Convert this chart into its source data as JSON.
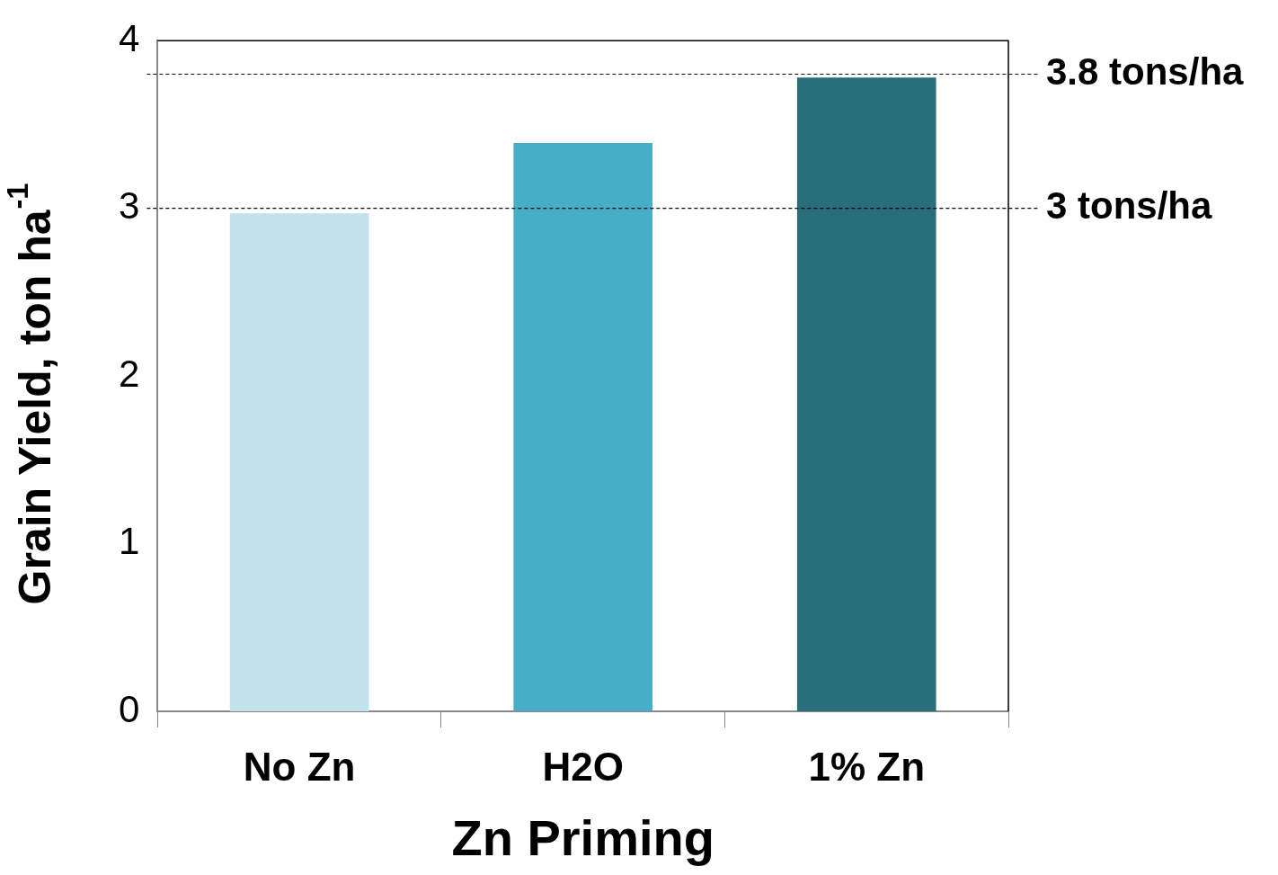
{
  "chart_data": {
    "type": "bar",
    "categories": [
      "No Zn",
      "H2O",
      "1% Zn"
    ],
    "values": [
      2.97,
      3.39,
      3.78
    ],
    "colors": [
      "#c2e3ec",
      "#48adc7",
      "#296d7a"
    ],
    "xlabel": "Zn Priming",
    "ylabel": "Grain Yield, ton ha$^{-1}$",
    "ylim": [
      0,
      4
    ],
    "yticks": [
      0,
      1,
      2,
      3,
      4
    ],
    "grid": false,
    "legend": false,
    "ref_lines": [
      {
        "axis": "y",
        "value": 3.8,
        "label": "3.8 tons/ha",
        "color": "#000000",
        "line_style": "dashed"
      },
      {
        "axis": "y",
        "value": 3.0,
        "label": "3 tons/ha",
        "color": "#000000",
        "line_style": "dashed"
      }
    ]
  }
}
